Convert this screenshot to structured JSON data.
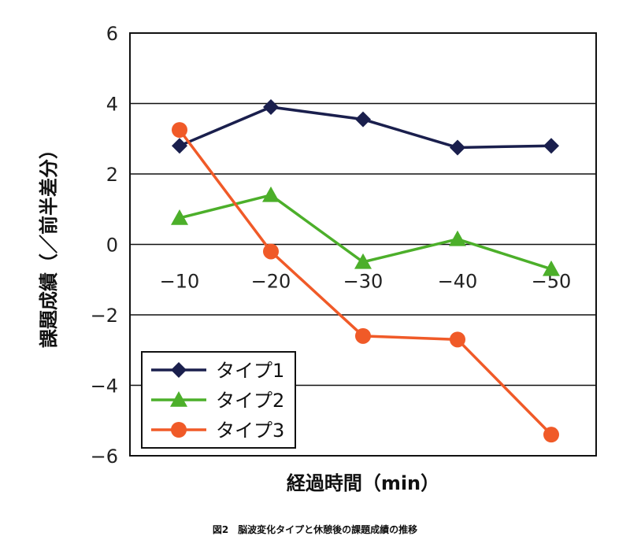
{
  "chart_data": {
    "type": "line",
    "x": [
      "−10",
      "−20",
      "−30",
      "−40",
      "−50"
    ],
    "xlabel": "経過時間（min）",
    "ylabel": "課題成績（／前半差分）",
    "ylim": [
      -6,
      6
    ],
    "yticks": [
      "6",
      "4",
      "2",
      "0",
      "−2",
      "−4",
      "−6"
    ],
    "yticks_values": [
      6,
      4,
      2,
      0,
      -2,
      -4,
      -6
    ],
    "grid": true,
    "legend_position": "bottom-left",
    "series": [
      {
        "name": "タイプ1",
        "color": "#1a1f4d",
        "marker": "diamond",
        "values": [
          2.8,
          3.9,
          3.55,
          2.75,
          2.8
        ]
      },
      {
        "name": "タイプ2",
        "color": "#4caf2a",
        "marker": "triangle",
        "values": [
          0.75,
          1.4,
          -0.5,
          0.15,
          -0.7
        ]
      },
      {
        "name": "タイプ3",
        "color": "#f05a28",
        "marker": "circle",
        "values": [
          3.25,
          -0.2,
          -2.6,
          -2.7,
          -5.4
        ]
      }
    ]
  },
  "caption": "図2　脳波変化タイプと休憩後の課題成績の推移"
}
